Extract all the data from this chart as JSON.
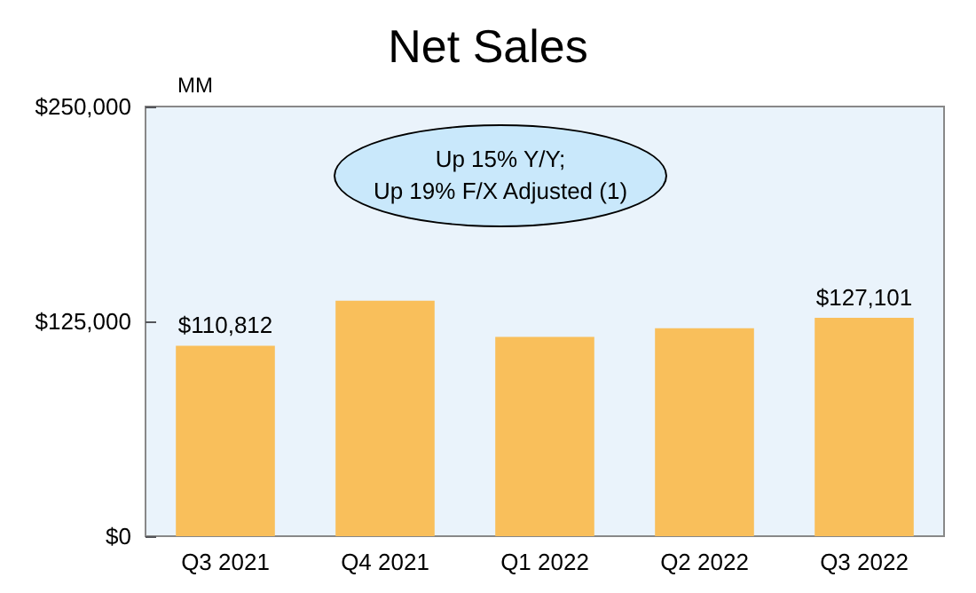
{
  "chart_data": {
    "type": "bar",
    "title": "Net Sales",
    "ylabel": "MM",
    "categories": [
      "Q3 2021",
      "Q4 2021",
      "Q1 2022",
      "Q2 2022",
      "Q3 2022"
    ],
    "values": [
      110812,
      137000,
      116000,
      121000,
      127101
    ],
    "value_labels": [
      "$110,812",
      null,
      null,
      null,
      "$127,101"
    ],
    "color": "#f9bf5b",
    "ylim": [
      0,
      250000
    ],
    "yticks": [
      {
        "value": 0,
        "label": "$0"
      },
      {
        "value": 125000,
        "label": "$125,000"
      },
      {
        "value": 250000,
        "label": "$250,000"
      }
    ],
    "annotations": [
      "Up 15% Y/Y;",
      "Up 19% F/X Adjusted (1)"
    ],
    "grid": false
  }
}
